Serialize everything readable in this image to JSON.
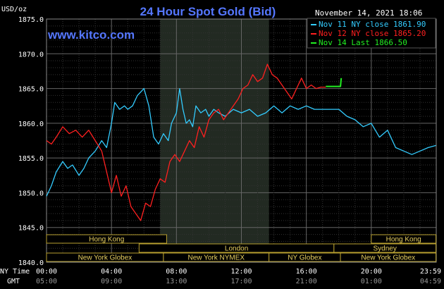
{
  "chart_data": {
    "type": "line",
    "title": "24 Hour Spot Gold (Bid)",
    "watermark": "www.kitco.com",
    "ylabel": "USD/oz",
    "datetime": "November 14, 2021 18:06",
    "ylim": [
      1840,
      1875
    ],
    "y_ticks": [
      "1875.0",
      "1870.0",
      "1865.0",
      "1860.0",
      "1855.0",
      "1850.0",
      "1845.0",
      "1840.0"
    ],
    "x_row_label_ny": "NY Time",
    "x_row_label_gmt": "GMT",
    "x_ticks_ny": [
      "00:00",
      "04:00",
      "08:00",
      "12:00",
      "16:00",
      "20:00",
      "23:59"
    ],
    "x_ticks_gmt": [
      "05:00",
      "09:00",
      "13:00",
      "17:00",
      "21:00",
      "01:00",
      "04:59"
    ],
    "grid": true,
    "legend_position": "top-right",
    "colors": {
      "nov11": "#33ccff",
      "nov12": "#ff2020",
      "nov14": "#22ee22",
      "title": "#5577ff",
      "highlight": "#222a22"
    },
    "series": [
      {
        "name": "Nov 11 NY close 1861.90",
        "x": [
          0,
          0.3,
          0.6,
          1.0,
          1.3,
          1.6,
          2.0,
          2.3,
          2.6,
          3.0,
          3.4,
          3.7,
          4.0,
          4.2,
          4.5,
          4.8,
          5.0,
          5.3,
          5.6,
          6.0,
          6.3,
          6.6,
          6.9,
          7.2,
          7.5,
          7.7,
          8.0,
          8.2,
          8.4,
          8.6,
          8.8,
          9.0,
          9.2,
          9.5,
          9.8,
          10.0,
          10.3,
          10.6,
          11.0,
          11.5,
          12.0,
          12.5,
          13.0,
          13.5,
          14.0,
          14.5,
          15.0,
          15.5,
          16.0,
          16.5,
          17.0,
          17.5,
          18.0,
          18.5,
          19.0,
          19.5,
          20.0,
          20.5,
          21.0,
          21.5,
          22.0,
          22.5,
          23.0,
          23.5,
          23.98
        ],
        "values": [
          1849.5,
          1851.0,
          1853.0,
          1854.5,
          1853.5,
          1854.0,
          1852.5,
          1853.5,
          1855.0,
          1856.0,
          1857.5,
          1856.5,
          1860.0,
          1863.0,
          1862.0,
          1862.5,
          1862.0,
          1862.5,
          1864.0,
          1865.0,
          1862.5,
          1858.0,
          1857.0,
          1858.5,
          1857.5,
          1860.0,
          1861.5,
          1865.0,
          1862.0,
          1860.0,
          1860.5,
          1859.5,
          1862.5,
          1861.5,
          1862.0,
          1861.0,
          1862.0,
          1861.5,
          1861.0,
          1862.0,
          1861.5,
          1862.0,
          1861.0,
          1861.5,
          1862.5,
          1861.5,
          1862.5,
          1862.0,
          1862.5,
          1862.0,
          1862.0,
          1862.0,
          1862.0,
          1861.0,
          1860.5,
          1859.5,
          1860.0,
          1858.0,
          1859.0,
          1856.5,
          1856.0,
          1855.5,
          1856.0,
          1856.5,
          1856.8
        ]
      },
      {
        "name": "Nov 12 NY close 1865.20",
        "x": [
          0,
          0.3,
          0.6,
          1.0,
          1.4,
          1.8,
          2.2,
          2.6,
          3.0,
          3.4,
          3.7,
          4.0,
          4.3,
          4.6,
          4.9,
          5.2,
          5.5,
          5.8,
          6.1,
          6.4,
          6.7,
          7.0,
          7.3,
          7.6,
          7.9,
          8.2,
          8.5,
          8.8,
          9.1,
          9.4,
          9.7,
          10.0,
          10.3,
          10.6,
          10.9,
          11.2,
          11.5,
          11.8,
          12.1,
          12.4,
          12.7,
          13.0,
          13.3,
          13.6,
          13.9,
          14.2,
          14.5,
          14.8,
          15.1,
          15.4,
          15.7,
          16.0,
          16.3,
          16.6,
          16.9,
          17.2
        ],
        "values": [
          1857.5,
          1857.0,
          1858.0,
          1859.5,
          1858.5,
          1859.0,
          1858.0,
          1859.0,
          1857.5,
          1856.0,
          1853.0,
          1850.0,
          1852.5,
          1849.5,
          1851.0,
          1848.0,
          1847.0,
          1846.0,
          1848.5,
          1848.0,
          1850.5,
          1852.0,
          1851.5,
          1854.5,
          1855.5,
          1854.5,
          1856.0,
          1857.5,
          1856.5,
          1859.5,
          1858.0,
          1860.5,
          1861.5,
          1862.0,
          1860.5,
          1861.5,
          1862.5,
          1863.5,
          1865.0,
          1865.5,
          1867.0,
          1866.0,
          1866.5,
          1868.5,
          1867.0,
          1866.5,
          1865.5,
          1864.5,
          1863.5,
          1865.0,
          1866.5,
          1865.0,
          1865.5,
          1865.0,
          1865.2,
          1865.2
        ]
      },
      {
        "name": "Nov 14 Last 1866.50",
        "x": [
          17.2,
          17.8,
          18.1,
          18.15
        ],
        "values": [
          1865.3,
          1865.3,
          1865.3,
          1866.5
        ]
      }
    ],
    "session_bands": [
      {
        "label": "Hong Kong",
        "row": 1,
        "start": 0,
        "end": 7.4
      },
      {
        "label": "Hong Kong",
        "row": 1,
        "start": 20.0,
        "end": 23.98
      },
      {
        "label": "London",
        "row": 2,
        "start": 5.7,
        "end": 17.7
      },
      {
        "label": "Sydney",
        "row": 2,
        "start": 17.7,
        "end": 23.98
      },
      {
        "label": "New York Globex",
        "row": 3,
        "start": 0,
        "end": 7.2
      },
      {
        "label": "New York NYMEX",
        "row": 3,
        "start": 7.2,
        "end": 13.7
      },
      {
        "label": "NY Globex",
        "row": 3,
        "start": 13.7,
        "end": 18.1
      },
      {
        "label": "New York Globex",
        "row": 3,
        "start": 18.1,
        "end": 23.98
      }
    ],
    "highlight_range": [
      7.0,
      13.7
    ]
  }
}
